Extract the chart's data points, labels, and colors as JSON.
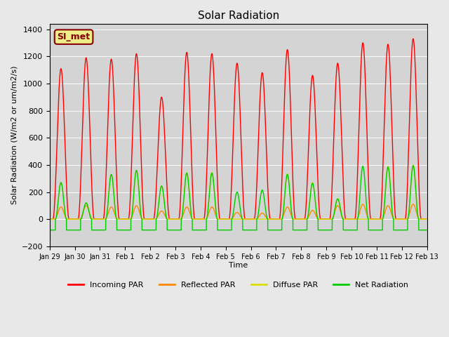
{
  "title": "Solar Radiation",
  "ylabel": "Solar Radiation (W/m2 or um/m2/s)",
  "xlabel": "Time",
  "ylim": [
    -200,
    1440
  ],
  "yticks": [
    -200,
    0,
    200,
    400,
    600,
    800,
    1000,
    1200,
    1400
  ],
  "xtick_labels": [
    "Jan 29",
    "Jan 30",
    "Jan 31",
    "Feb 1",
    "Feb 2",
    "Feb 3",
    "Feb 4",
    "Feb 5",
    "Feb 6",
    "Feb 7",
    "Feb 8",
    "Feb 9",
    "Feb 10",
    "Feb 11",
    "Feb 12",
    "Feb 13"
  ],
  "legend_labels": [
    "Incoming PAR",
    "Reflected PAR",
    "Diffuse PAR",
    "Net Radiation"
  ],
  "legend_colors": [
    "#ff0000",
    "#ff8800",
    "#dddd00",
    "#00cc00"
  ],
  "annotation_text": "SI_met",
  "annotation_color": "#880000",
  "annotation_bg": "#eeee88",
  "bg_color": "#e8e8e8",
  "ax_bg_color": "#d4d4d4",
  "n_days": 15,
  "peak_times": [
    0.45,
    1.45,
    2.45,
    3.45,
    4.45,
    5.45,
    6.45,
    7.45,
    8.45,
    9.45,
    10.45,
    11.45,
    12.45,
    13.45,
    14.45
  ],
  "incoming_peaks": [
    1110,
    1190,
    1180,
    1220,
    900,
    1230,
    1220,
    1150,
    1080,
    1250,
    1060,
    1150,
    1300,
    1290,
    1330
  ],
  "diffuse_peaks": [
    270,
    120,
    330,
    360,
    245,
    345,
    345,
    0,
    0,
    335,
    270,
    150,
    0,
    390,
    400
  ],
  "reflected_peaks": [
    90,
    100,
    90,
    100,
    60,
    90,
    90,
    50,
    45,
    90,
    65,
    100,
    110,
    100,
    110
  ],
  "net_peaks": [
    270,
    120,
    330,
    360,
    245,
    340,
    340,
    200,
    215,
    330,
    265,
    150,
    390,
    385,
    395
  ],
  "night_net": -80
}
